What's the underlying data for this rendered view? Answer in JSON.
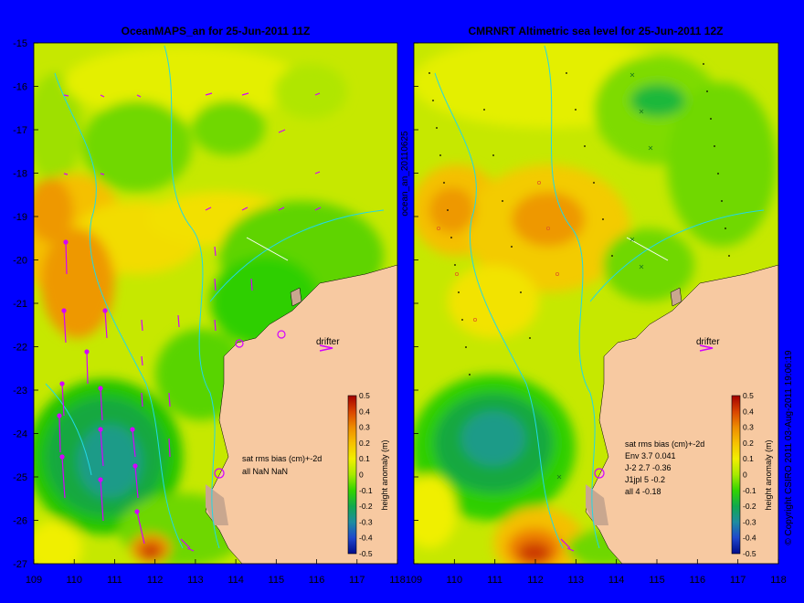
{
  "figure": {
    "background": "#0000ff",
    "land_color": "#f7c9a1",
    "panels": [
      {
        "id": "ocean",
        "title": "OceanMAPS_an for 25-Jun-2011 11Z",
        "drifter_label": "drifter",
        "stats_lines": [
          "sat rms bias (cm)+-2d",
          "all NaN NaN"
        ],
        "colorbar_label": "height anomaly (m)",
        "colorbar_ticks": [
          "0.5",
          "0.4",
          "0.3",
          "0.2",
          "0.1",
          "0",
          "-0.1",
          "-0.2",
          "-0.3",
          "-0.4",
          "-0.5"
        ]
      },
      {
        "id": "altimetry",
        "title": "CMRNRT Altimetric sea level  for 25-Jun-2011 12Z",
        "drifter_label": "drifter",
        "stats_lines": [
          "sat rms bias (cm)+-2d",
          "Env   3.7 0.041",
          "J-2   2.7 -0.36",
          "J1jpl 5 -0.2",
          "all 4 -0.18"
        ],
        "colorbar_label": "height anomaly (m)",
        "colorbar_ticks": [
          "0.5",
          "0.4",
          "0.3",
          "0.2",
          "0.1",
          "0",
          "-0.1",
          "-0.2",
          "-0.3",
          "-0.4",
          "-0.5"
        ]
      }
    ],
    "y_ticks": [
      "-15",
      "-16",
      "-17",
      "-18",
      "-19",
      "-20",
      "-21",
      "-22",
      "-23",
      "-24",
      "-25",
      "-26",
      "-27"
    ],
    "x_ticks": [
      "109",
      "110",
      "111",
      "112",
      "113",
      "114",
      "115",
      "116",
      "117",
      "118"
    ],
    "side_label_left": "ocean_an_20110625",
    "side_label_right": "© Copyright CSIRO 2011   03-Aug-2011 19:06:19"
  }
}
